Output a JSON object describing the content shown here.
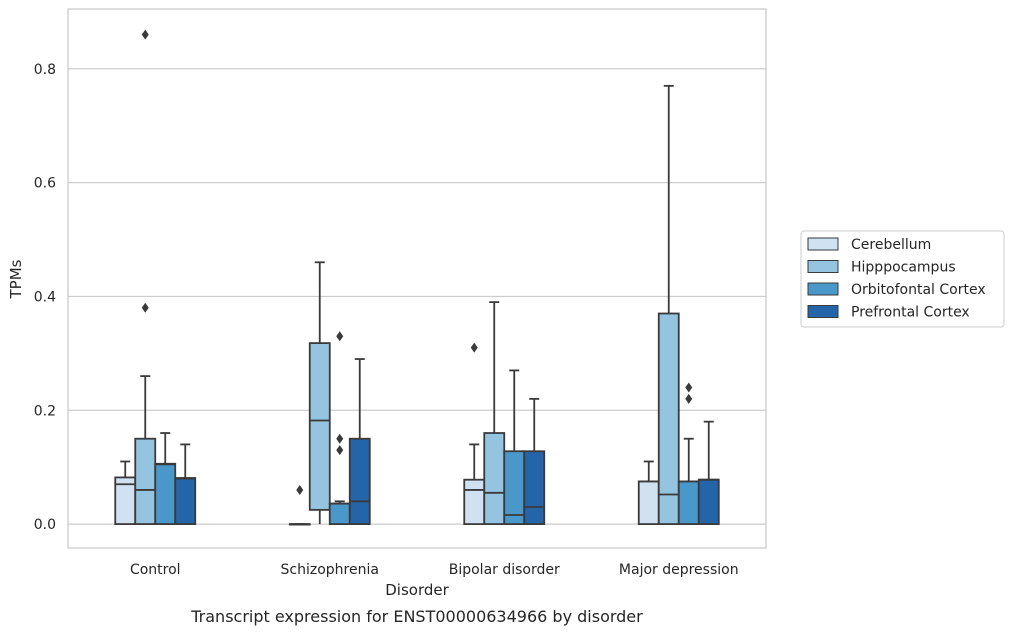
{
  "chart_data": {
    "type": "box",
    "xlabel": "Disorder",
    "ylabel": "TPMs",
    "caption": "Transcript expression for ENST00000634966 by disorder",
    "ylim": [
      -0.042,
      0.905
    ],
    "yticks": [
      0.0,
      0.2,
      0.4,
      0.6,
      0.8
    ],
    "ytick_labels": [
      "0.0",
      "0.2",
      "0.4",
      "0.6",
      "0.8"
    ],
    "grid": "horizontal",
    "legend_position": "right",
    "categories": [
      "Control",
      "Schizophrenia",
      "Bipolar disorder",
      "Major depression"
    ],
    "series": [
      {
        "name": "Cerebellum",
        "color": "#d0e1f2",
        "boxes": [
          {
            "q1": 0.0,
            "median": 0.07,
            "q3": 0.082,
            "whisker_low": 0.0,
            "whisker_high": 0.11,
            "outliers": []
          },
          {
            "q1": 0.0,
            "median": 0.0,
            "q3": 0.0,
            "whisker_low": 0.0,
            "whisker_high": 0.0,
            "outliers": [
              0.06
            ]
          },
          {
            "q1": 0.0,
            "median": 0.06,
            "q3": 0.078,
            "whisker_low": 0.0,
            "whisker_high": 0.14,
            "outliers": [
              0.31
            ]
          },
          {
            "q1": 0.0,
            "median": 0.075,
            "q3": 0.075,
            "whisker_low": 0.0,
            "whisker_high": 0.11,
            "outliers": []
          }
        ]
      },
      {
        "name": "Hipppocampus",
        "color": "#94c4df",
        "boxes": [
          {
            "q1": 0.0,
            "median": 0.06,
            "q3": 0.15,
            "whisker_low": 0.0,
            "whisker_high": 0.26,
            "outliers": [
              0.38,
              0.86
            ]
          },
          {
            "q1": 0.025,
            "median": 0.182,
            "q3": 0.318,
            "whisker_low": 0.0,
            "whisker_high": 0.46,
            "outliers": []
          },
          {
            "q1": 0.0,
            "median": 0.055,
            "q3": 0.16,
            "whisker_low": 0.0,
            "whisker_high": 0.39,
            "outliers": []
          },
          {
            "q1": 0.0,
            "median": 0.052,
            "q3": 0.37,
            "whisker_low": 0.0,
            "whisker_high": 0.77,
            "outliers": []
          }
        ]
      },
      {
        "name": "Orbitofontal Cortex",
        "color": "#4a98c9",
        "boxes": [
          {
            "q1": 0.0,
            "median": 0.105,
            "q3": 0.106,
            "whisker_low": 0.0,
            "whisker_high": 0.16,
            "outliers": []
          },
          {
            "q1": 0.0,
            "median": 0.036,
            "q3": 0.036,
            "whisker_low": 0.0,
            "whisker_high": 0.04,
            "outliers": [
              0.13,
              0.15,
              0.33
            ]
          },
          {
            "q1": 0.0,
            "median": 0.016,
            "q3": 0.128,
            "whisker_low": 0.0,
            "whisker_high": 0.27,
            "outliers": []
          },
          {
            "q1": 0.0,
            "median": 0.075,
            "q3": 0.075,
            "whisker_low": 0.0,
            "whisker_high": 0.15,
            "outliers": [
              0.22,
              0.24
            ]
          }
        ]
      },
      {
        "name": "Prefrontal Cortex",
        "color": "#2464a8",
        "boxes": [
          {
            "q1": 0.0,
            "median": 0.08,
            "q3": 0.081,
            "whisker_low": 0.0,
            "whisker_high": 0.14,
            "outliers": []
          },
          {
            "q1": 0.0,
            "median": 0.04,
            "q3": 0.15,
            "whisker_low": 0.0,
            "whisker_high": 0.29,
            "outliers": []
          },
          {
            "q1": 0.0,
            "median": 0.03,
            "q3": 0.128,
            "whisker_low": 0.0,
            "whisker_high": 0.22,
            "outliers": []
          },
          {
            "q1": 0.0,
            "median": 0.078,
            "q3": 0.078,
            "whisker_low": 0.0,
            "whisker_high": 0.18,
            "outliers": []
          }
        ]
      }
    ]
  }
}
